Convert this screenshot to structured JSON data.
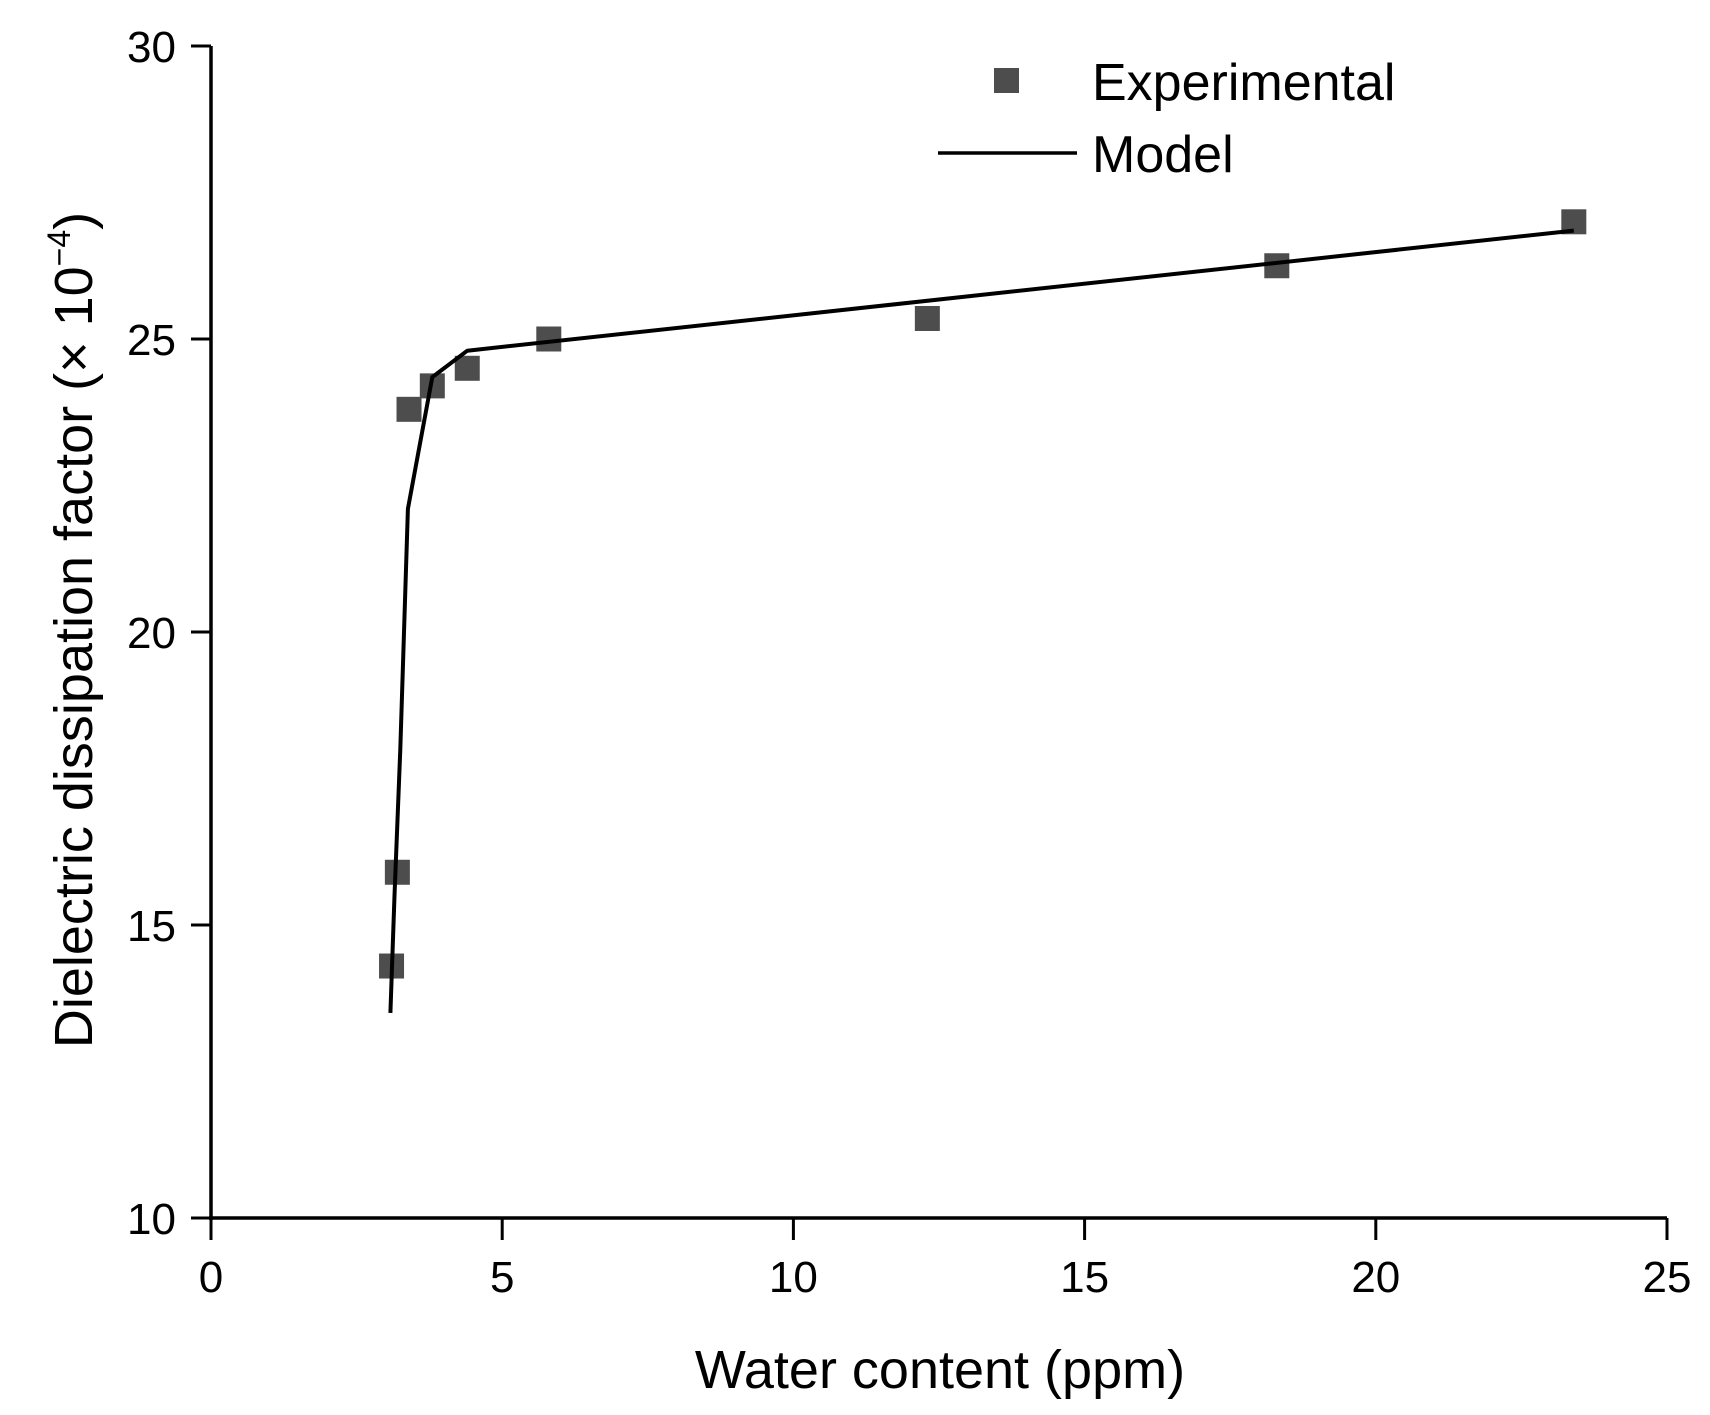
{
  "chart_data": {
    "type": "scatter",
    "title": "",
    "xlabel": "Water content (ppm)",
    "ylabel_main": "Dielectric dissipation factor (× 10",
    "ylabel_exponent": "−4",
    "ylabel_close": ")",
    "xlim": [
      0,
      25
    ],
    "ylim": [
      10,
      30
    ],
    "x_ticks": [
      0,
      5,
      10,
      15,
      20,
      25
    ],
    "x_tick_labels": [
      "0",
      "5",
      "10",
      "15",
      "20",
      "25"
    ],
    "y_ticks": [
      10,
      15,
      20,
      25,
      30
    ],
    "y_tick_labels": [
      "10",
      "15",
      "20",
      "25",
      "30"
    ],
    "grid": false,
    "legend_position": "top-right",
    "series": [
      {
        "name": "Experimental",
        "kind": "markers",
        "marker": "square",
        "color": "#4d4d4d",
        "points": [
          [
            3.1,
            14.3
          ],
          [
            3.2,
            15.9
          ],
          [
            3.4,
            23.8
          ],
          [
            3.8,
            24.2
          ],
          [
            4.4,
            24.5
          ],
          [
            5.8,
            25.0
          ],
          [
            12.3,
            25.35
          ],
          [
            18.3,
            26.25
          ],
          [
            23.4,
            27.0
          ]
        ]
      },
      {
        "name": "Model",
        "kind": "line",
        "color": "#000000",
        "points": [
          [
            3.08,
            13.5
          ],
          [
            3.15,
            15.5
          ],
          [
            3.25,
            18.0
          ],
          [
            3.38,
            22.1
          ],
          [
            3.8,
            24.35
          ],
          [
            4.4,
            24.8
          ],
          [
            23.4,
            26.85
          ]
        ]
      }
    ]
  }
}
